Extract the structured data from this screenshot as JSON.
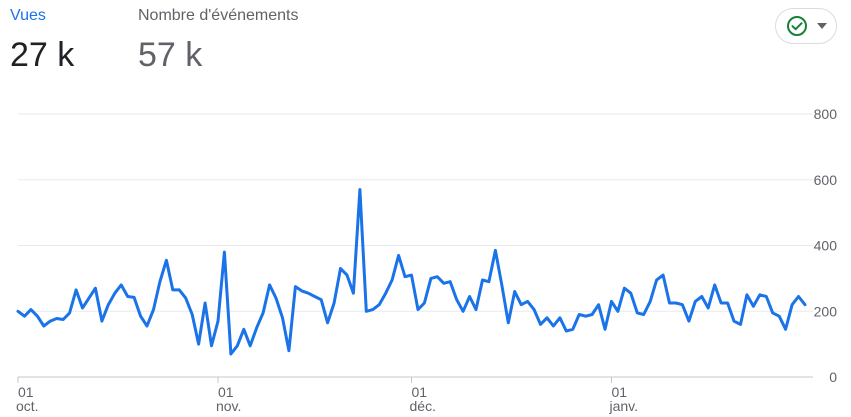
{
  "metrics": [
    {
      "label": "Vues",
      "value": "27 k",
      "active": true
    },
    {
      "label": "Nombre d'événements",
      "value": "57 k",
      "active": false
    }
  ],
  "status_chip": {
    "icon": "check-circle-icon",
    "caret": "chevron-down-icon",
    "color": "#188038"
  },
  "chart_data": {
    "type": "line",
    "title": "",
    "xlabel": "",
    "ylabel": "",
    "ylim": [
      0,
      800
    ],
    "y_ticks": [
      0,
      200,
      400,
      600,
      800
    ],
    "y_tick_labels": [
      "0",
      "200",
      "400",
      "600",
      "800"
    ],
    "y_axis_position": "right",
    "grid": true,
    "x_tick_labels": [
      {
        "day": "01",
        "month": "oct.",
        "date": "2023-10-01"
      },
      {
        "day": "01",
        "month": "nov.",
        "date": "2023-11-01"
      },
      {
        "day": "01",
        "month": "déc.",
        "date": "2023-12-01"
      },
      {
        "day": "01",
        "month": "janv.",
        "date": "2024-01-01"
      }
    ],
    "x_start": "2023-10-01",
    "series": [
      {
        "color": "#1a73e8",
        "values": [
          200,
          185,
          205,
          185,
          155,
          170,
          178,
          175,
          195,
          265,
          210,
          240,
          270,
          170,
          220,
          255,
          280,
          245,
          242,
          185,
          155,
          205,
          290,
          355,
          265,
          265,
          240,
          190,
          100,
          225,
          95,
          170,
          380,
          70,
          95,
          145,
          95,
          150,
          195,
          280,
          240,
          180,
          80,
          275,
          262,
          255,
          245,
          235,
          165,
          225,
          330,
          310,
          255,
          570,
          200,
          205,
          220,
          255,
          295,
          370,
          305,
          310,
          205,
          225,
          300,
          305,
          285,
          290,
          235,
          200,
          245,
          205,
          295,
          290,
          385,
          280,
          165,
          260,
          220,
          230,
          205,
          160,
          180,
          155,
          180,
          140,
          145,
          190,
          185,
          190,
          220,
          145,
          230,
          200,
          270,
          255,
          195,
          190,
          230,
          295,
          310,
          225,
          225,
          220,
          170,
          230,
          245,
          210,
          280,
          225,
          225,
          170,
          160,
          250,
          215,
          250,
          245,
          195,
          185,
          145,
          220,
          245,
          220
        ]
      }
    ]
  }
}
